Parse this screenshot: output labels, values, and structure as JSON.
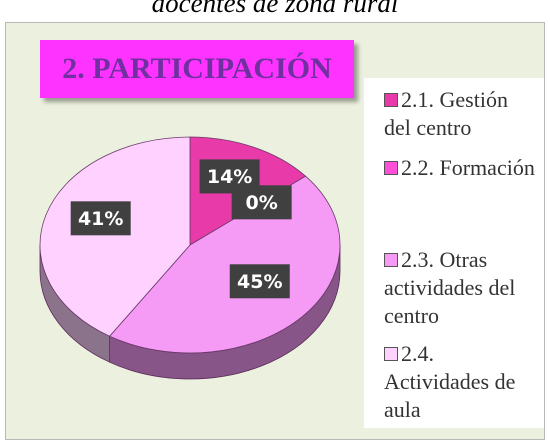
{
  "chart_data": {
    "type": "pie",
    "subtitle": "docentes de zona rural",
    "title": "2. PARTICIPACIÓN",
    "categories": [
      "2.1. Gestión del centro",
      "2.2. Formación",
      "2.3. Otras actividades del centro",
      "2.4. Actividades de aula"
    ],
    "values": [
      14,
      0,
      45,
      41
    ],
    "value_labels": [
      "14%",
      "0%",
      "45%",
      "41%"
    ],
    "colors": [
      "#e83aa8",
      "#ff4fd8",
      "#f59af5",
      "#ffd1ff"
    ],
    "legend": "right"
  }
}
